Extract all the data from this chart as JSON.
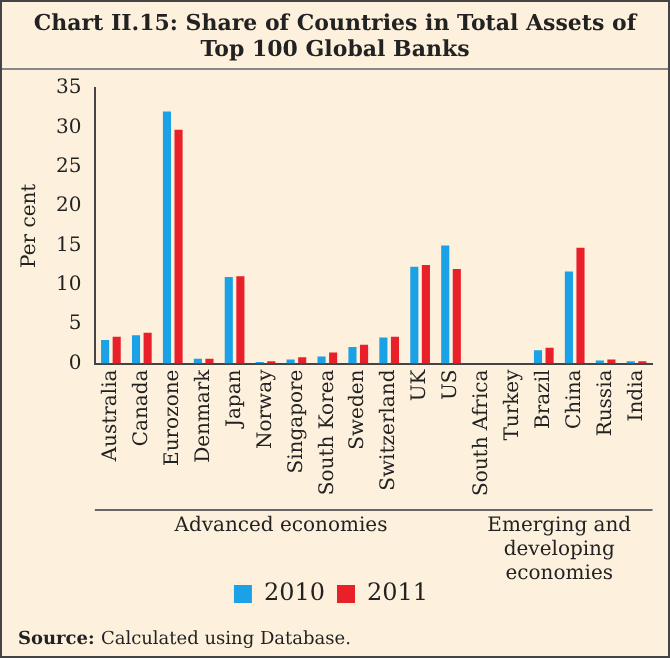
{
  "chart_data": {
    "type": "bar",
    "title": "Chart II.15: Share of Countries in Total Assets of Top 100 Global Banks",
    "ylabel": "Per cent",
    "categories": [
      "Australia",
      "Canada",
      "Eurozone",
      "Denmark",
      "Japan",
      "Norway",
      "Singapore",
      "South Korea",
      "Sweden",
      "Switzerland",
      "UK",
      "US",
      "South Africa",
      "Turkey",
      "Brazil",
      "China",
      "Russia",
      "India"
    ],
    "series": [
      {
        "name": "2010",
        "color": "#1ba1e6",
        "values": [
          3.0,
          3.6,
          32.0,
          0.6,
          11.0,
          0.2,
          0.5,
          0.9,
          2.1,
          3.3,
          12.3,
          15.0,
          0,
          0,
          1.7,
          11.7,
          0.4,
          0.3
        ]
      },
      {
        "name": "2011",
        "color": "#e8202a",
        "values": [
          3.4,
          3.9,
          29.7,
          0.6,
          11.1,
          0.3,
          0.8,
          1.4,
          2.4,
          3.4,
          12.5,
          12.0,
          0,
          0,
          2.0,
          14.7,
          0.5,
          0.3
        ]
      }
    ],
    "ylim": [
      0,
      35
    ],
    "yticks": [
      0,
      5,
      10,
      15,
      20,
      25,
      30,
      35
    ],
    "grid": false,
    "legend": "bottom",
    "annotations": [
      "Advanced economies",
      "Emerging and developing economies",
      "Source: Calculated using Database."
    ]
  }
}
